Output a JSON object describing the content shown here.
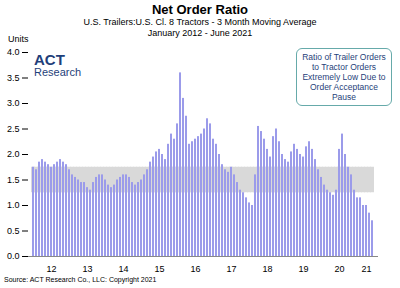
{
  "chart_data": {
    "type": "bar",
    "title": "Net Order Ratio",
    "subtitle": [
      "U.S. Trailers:U.S. Cl. 8 Tractors - 3 Month Moving Average",
      "January 2012 - June 2021"
    ],
    "y_label": "Units",
    "logo": [
      "ACT",
      "Research"
    ],
    "annotation": "Ratio of Trailer Orders to Tractor Orders Extremely Low Due to Order Acceptance Pause",
    "source": "Source: ACT Research Co., LLC: Copyright 2021",
    "categories": [
      null,
      null,
      null,
      null,
      null,
      null,
      "12",
      null,
      null,
      null,
      null,
      null,
      null,
      null,
      null,
      null,
      null,
      null,
      "13",
      null,
      null,
      null,
      null,
      null,
      null,
      null,
      null,
      null,
      null,
      null,
      "14",
      null,
      null,
      null,
      null,
      null,
      null,
      null,
      null,
      null,
      null,
      null,
      "15",
      null,
      null,
      null,
      null,
      null,
      null,
      null,
      null,
      null,
      null,
      null,
      "16",
      null,
      null,
      null,
      null,
      null,
      null,
      null,
      null,
      null,
      null,
      null,
      "17",
      null,
      null,
      null,
      null,
      null,
      null,
      null,
      null,
      null,
      null,
      null,
      "18",
      null,
      null,
      null,
      null,
      null,
      null,
      null,
      null,
      null,
      null,
      null,
      "19",
      null,
      null,
      null,
      null,
      null,
      null,
      null,
      null,
      null,
      null,
      null,
      "20",
      null,
      null,
      null,
      null,
      null,
      null,
      null,
      null,
      "21",
      null,
      null
    ],
    "values": [
      1.75,
      1.7,
      1.85,
      1.9,
      1.85,
      1.8,
      1.75,
      1.8,
      1.85,
      1.9,
      1.85,
      1.8,
      1.7,
      1.6,
      1.55,
      1.5,
      1.45,
      1.45,
      1.35,
      1.3,
      1.45,
      1.55,
      1.6,
      1.6,
      1.5,
      1.4,
      1.35,
      1.4,
      1.5,
      1.55,
      1.6,
      1.6,
      1.55,
      1.45,
      1.4,
      1.45,
      1.5,
      1.6,
      1.7,
      1.85,
      1.95,
      2.05,
      2.1,
      2.0,
      1.9,
      2.2,
      2.4,
      2.3,
      2.6,
      3.6,
      3.1,
      2.75,
      2.2,
      2.25,
      2.3,
      2.35,
      2.4,
      2.5,
      2.7,
      2.6,
      2.3,
      2.2,
      2.0,
      1.8,
      1.7,
      1.65,
      1.75,
      1.6,
      1.45,
      1.3,
      1.25,
      1.15,
      1.05,
      1.0,
      1.6,
      2.55,
      2.45,
      2.3,
      2.1,
      1.95,
      2.35,
      2.5,
      2.25,
      2.0,
      1.9,
      1.85,
      2.05,
      2.2,
      2.1,
      2.0,
      1.95,
      2.15,
      2.25,
      2.1,
      1.9,
      1.7,
      1.55,
      1.4,
      1.3,
      1.25,
      1.2,
      1.3,
      2.1,
      2.4,
      2.0,
      1.75,
      1.6,
      1.3,
      1.15,
      1.15,
      1.0,
      1.0,
      0.85,
      0.7
    ],
    "color": "#9b9bea",
    "band": [
      1.25,
      1.75
    ],
    "ylim": [
      0,
      4
    ],
    "yticks": [
      {
        "value": 0,
        "label": "0.0"
      },
      {
        "value": 0.5,
        "label": "0.5"
      },
      {
        "value": 1,
        "label": "1.0"
      },
      {
        "value": 1.5,
        "label": "1.5"
      },
      {
        "value": 2,
        "label": "2.0"
      },
      {
        "value": 2.5,
        "label": "2.5"
      },
      {
        "value": 3,
        "label": "3.0"
      },
      {
        "value": 3.5,
        "label": "3.5"
      },
      {
        "value": 4,
        "label": "4.0"
      }
    ],
    "grid": false
  }
}
